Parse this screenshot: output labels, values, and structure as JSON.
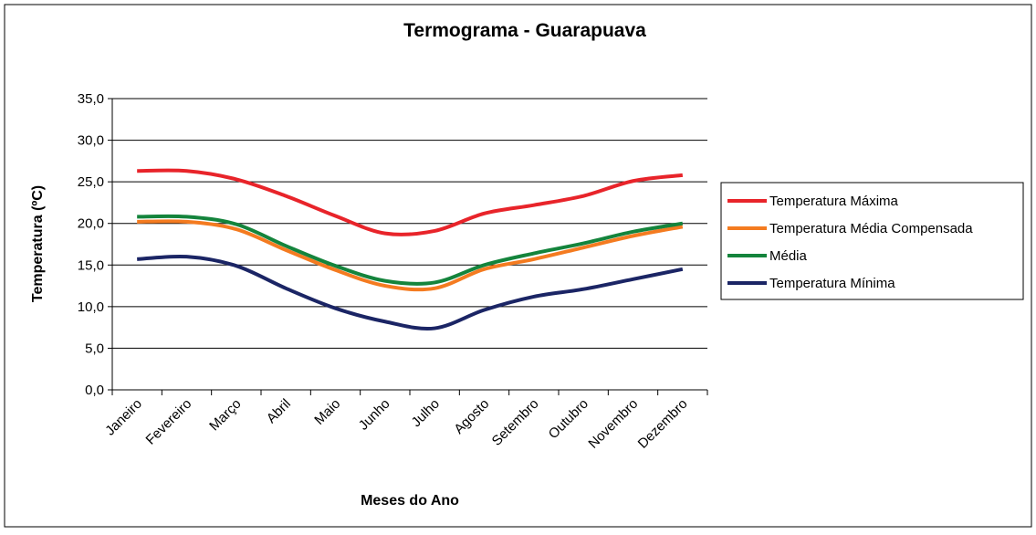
{
  "chart_data": {
    "type": "line",
    "title": "Termograma - Guarapuava",
    "x_label": "Meses do Ano",
    "y_label": "Temperatura (ºC)",
    "categories": [
      "Janeiro",
      "Fevereiro",
      "Março",
      "Abril",
      "Maio",
      "Junho",
      "Julho",
      "Agosto",
      "Setembro",
      "Outubro",
      "Novembro",
      "Dezembro"
    ],
    "series": [
      {
        "name": "Temperatura Máxima",
        "color": "#e8242a",
        "values": [
          26.3,
          26.3,
          25.3,
          23.3,
          20.9,
          18.8,
          19.1,
          21.2,
          22.2,
          23.3,
          25.1,
          25.8
        ]
      },
      {
        "name": "Temperatura Média Compensada",
        "color": "#f47b20",
        "values": [
          20.2,
          20.2,
          19.3,
          16.8,
          14.4,
          12.5,
          12.2,
          14.5,
          15.7,
          17.1,
          18.5,
          19.6
        ]
      },
      {
        "name": "Média",
        "color": "#14843c",
        "values": [
          20.8,
          20.8,
          19.9,
          17.3,
          14.9,
          13.1,
          12.9,
          15.0,
          16.4,
          17.6,
          19.0,
          20.0
        ]
      },
      {
        "name": "Temperatura Mínima",
        "color": "#1b2565",
        "values": [
          15.7,
          16.0,
          14.9,
          12.2,
          9.8,
          8.2,
          7.4,
          9.6,
          11.2,
          12.1,
          13.3,
          14.5
        ]
      }
    ],
    "ylim": [
      0,
      35
    ],
    "yticks": [
      {
        "value": 0,
        "label": "0,0"
      },
      {
        "value": 5,
        "label": "5,0"
      },
      {
        "value": 10,
        "label": "10,0"
      },
      {
        "value": 15,
        "label": "15,0"
      },
      {
        "value": 20,
        "label": "20,0"
      },
      {
        "value": 25,
        "label": "25,0"
      },
      {
        "value": 30,
        "label": "30,0"
      },
      {
        "value": 35,
        "label": "35,0"
      }
    ],
    "grid": true,
    "legend": "right"
  }
}
